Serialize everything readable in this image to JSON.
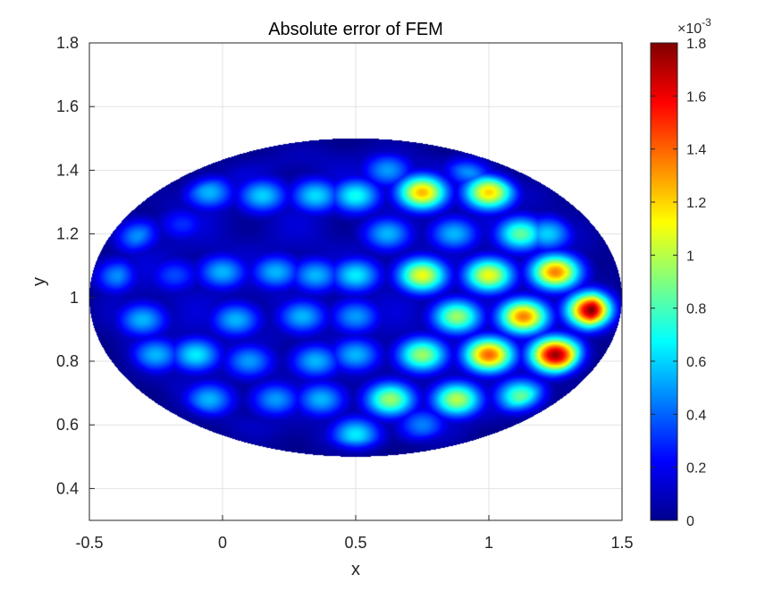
{
  "chart_data": {
    "type": "heatmap",
    "title": "Absolute error of FEM",
    "xlabel": "x",
    "ylabel": "y",
    "xlim": [
      -0.5,
      1.5
    ],
    "ylim": [
      0.3,
      1.8
    ],
    "xticks": [
      -0.5,
      0,
      0.5,
      1,
      1.5
    ],
    "xtick_labels": [
      "-0.5",
      "0",
      "0.5",
      "1",
      "1.5"
    ],
    "yticks": [
      0.4,
      0.6,
      0.8,
      1.0,
      1.2,
      1.4,
      1.6,
      1.8
    ],
    "ytick_labels": [
      "0.4",
      "0.6",
      "0.8",
      "1",
      "1.2",
      "1.4",
      "1.6",
      "1.8"
    ],
    "grid": true,
    "colormap": "jet",
    "domain": {
      "shape": "ellipse",
      "center": [
        0.5,
        1.0
      ],
      "semi_axes": [
        1.0,
        0.5
      ]
    },
    "colorbar": {
      "multiplier": "×10",
      "exponent": "-3",
      "clim": [
        0,
        1.8
      ],
      "ticks": [
        0,
        0.2,
        0.4,
        0.6,
        0.8,
        1,
        1.2,
        1.4,
        1.6,
        1.8
      ],
      "tick_labels": [
        "0",
        "0.2",
        "0.4",
        "0.6",
        "0.8",
        "1",
        "1.2",
        "1.4",
        "1.6",
        "1.8"
      ]
    },
    "peaks": [
      {
        "x": -0.34,
        "y": 1.2,
        "value": 0.55
      },
      {
        "x": -0.15,
        "y": 1.23,
        "value": 0.3
      },
      {
        "x": -0.05,
        "y": 1.33,
        "value": 0.55
      },
      {
        "x": 0.15,
        "y": 1.32,
        "value": 0.6
      },
      {
        "x": 0.35,
        "y": 1.32,
        "value": 0.62
      },
      {
        "x": 0.5,
        "y": 1.32,
        "value": 0.7
      },
      {
        "x": 0.62,
        "y": 1.4,
        "value": 0.5
      },
      {
        "x": 0.75,
        "y": 1.33,
        "value": 1.25
      },
      {
        "x": 0.93,
        "y": 1.4,
        "value": 0.5
      },
      {
        "x": 1.0,
        "y": 1.33,
        "value": 1.2
      },
      {
        "x": 0.62,
        "y": 1.2,
        "value": 0.55
      },
      {
        "x": 0.87,
        "y": 1.2,
        "value": 0.55
      },
      {
        "x": 1.12,
        "y": 1.2,
        "value": 0.85
      },
      {
        "x": 1.22,
        "y": 1.2,
        "value": 0.6
      },
      {
        "x": -0.42,
        "y": 1.07,
        "value": 0.55
      },
      {
        "x": -0.18,
        "y": 1.07,
        "value": 0.35
      },
      {
        "x": 0.0,
        "y": 1.08,
        "value": 0.55
      },
      {
        "x": 0.2,
        "y": 1.08,
        "value": 0.55
      },
      {
        "x": 0.35,
        "y": 1.07,
        "value": 0.55
      },
      {
        "x": 0.5,
        "y": 1.07,
        "value": 0.65
      },
      {
        "x": 0.75,
        "y": 1.07,
        "value": 1.1
      },
      {
        "x": 1.0,
        "y": 1.07,
        "value": 1.1
      },
      {
        "x": 1.25,
        "y": 1.08,
        "value": 1.35
      },
      {
        "x": 1.39,
        "y": 0.96,
        "value": 1.8
      },
      {
        "x": -0.3,
        "y": 0.93,
        "value": 0.55
      },
      {
        "x": 0.05,
        "y": 0.93,
        "value": 0.55
      },
      {
        "x": 0.3,
        "y": 0.94,
        "value": 0.55
      },
      {
        "x": 0.5,
        "y": 0.94,
        "value": 0.5
      },
      {
        "x": 0.88,
        "y": 0.94,
        "value": 0.95
      },
      {
        "x": 1.13,
        "y": 0.94,
        "value": 1.35
      },
      {
        "x": -0.25,
        "y": 0.82,
        "value": 0.55
      },
      {
        "x": -0.1,
        "y": 0.82,
        "value": 0.65
      },
      {
        "x": 0.1,
        "y": 0.8,
        "value": 0.5
      },
      {
        "x": 0.35,
        "y": 0.8,
        "value": 0.55
      },
      {
        "x": 0.5,
        "y": 0.82,
        "value": 0.55
      },
      {
        "x": 0.75,
        "y": 0.82,
        "value": 0.95
      },
      {
        "x": 1.0,
        "y": 0.82,
        "value": 1.4
      },
      {
        "x": 1.25,
        "y": 0.82,
        "value": 1.75
      },
      {
        "x": -0.05,
        "y": 0.68,
        "value": 0.55
      },
      {
        "x": 0.2,
        "y": 0.68,
        "value": 0.5
      },
      {
        "x": 0.37,
        "y": 0.68,
        "value": 0.55
      },
      {
        "x": 0.63,
        "y": 0.68,
        "value": 0.95
      },
      {
        "x": 0.88,
        "y": 0.68,
        "value": 1.0
      },
      {
        "x": 1.12,
        "y": 0.69,
        "value": 0.85
      },
      {
        "x": 0.5,
        "y": 0.57,
        "value": 0.65
      },
      {
        "x": 0.75,
        "y": 0.6,
        "value": 0.45
      }
    ]
  }
}
